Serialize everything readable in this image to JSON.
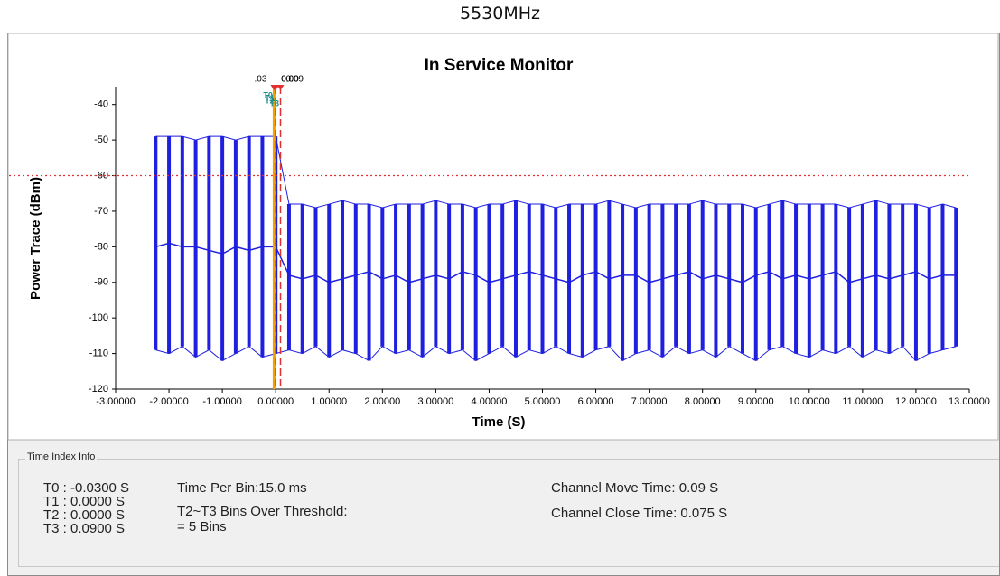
{
  "header": {
    "title": "5530MHz"
  },
  "chart_data": {
    "type": "trace",
    "title": "In Service Monitor",
    "x_label": "Time (S)",
    "y_label": "Power Trace (dBm)",
    "xlim": [
      -3,
      13
    ],
    "xticks": [
      {
        "value": -3,
        "label": "-3.00000"
      },
      {
        "value": -2,
        "label": "-2.00000"
      },
      {
        "value": -1,
        "label": "-1.00000"
      },
      {
        "value": 0,
        "label": "0.00000"
      },
      {
        "value": 1,
        "label": "1.00000"
      },
      {
        "value": 2,
        "label": "2.00000"
      },
      {
        "value": 3,
        "label": "3.00000"
      },
      {
        "value": 4,
        "label": "4.00000"
      },
      {
        "value": 5,
        "label": "5.00000"
      },
      {
        "value": 6,
        "label": "6.00000"
      },
      {
        "value": 7,
        "label": "7.00000"
      },
      {
        "value": 8,
        "label": "8.00000"
      },
      {
        "value": 9,
        "label": "9.00000"
      },
      {
        "value": 10,
        "label": "10.00000"
      },
      {
        "value": 11,
        "label": "11.00000"
      },
      {
        "value": 12,
        "label": "12.00000"
      },
      {
        "value": 13,
        "label": "13.00000"
      }
    ],
    "ylim": [
      -120,
      -35
    ],
    "yticks": [
      -120,
      -110,
      -100,
      -90,
      -80,
      -70,
      -60,
      -50,
      -40
    ],
    "threshold": -60,
    "threshold_color": "#e03030",
    "x": [
      -2.25,
      -2,
      -1.75,
      -1.5,
      -1.25,
      -1,
      -0.75,
      -0.5,
      -0.25,
      0,
      0.25,
      0.5,
      0.75,
      1,
      1.25,
      1.5,
      1.75,
      2,
      2.25,
      2.5,
      2.75,
      3,
      3.25,
      3.5,
      3.75,
      4,
      4.25,
      4.5,
      4.75,
      5,
      5.25,
      5.5,
      5.75,
      6,
      6.25,
      6.5,
      6.75,
      7,
      7.25,
      7.5,
      7.75,
      8,
      8.25,
      8.5,
      8.75,
      9,
      9.25,
      9.5,
      9.75,
      10,
      10.25,
      10.5,
      10.75,
      11,
      11.25,
      11.5,
      11.75,
      12,
      12.25,
      12.5,
      12.75
    ],
    "series": [
      {
        "color": "#1f1fe0",
        "values": [
          -49,
          -49,
          -49,
          -50,
          -49,
          -49,
          -50,
          -49,
          -49,
          -49,
          -68,
          -68,
          -69,
          -68,
          -67,
          -68,
          -68,
          -69,
          -68,
          -68,
          -68,
          -67,
          -68,
          -68,
          -69,
          -68,
          -68,
          -67,
          -68,
          -68,
          -69,
          -68,
          -68,
          -68,
          -67,
          -68,
          -69,
          -68,
          -68,
          -68,
          -68,
          -67,
          -68,
          -68,
          -68,
          -69,
          -68,
          -67,
          -68,
          -68,
          -68,
          -68,
          -69,
          -68,
          -67,
          -68,
          -68,
          -68,
          -69,
          -68,
          -69
        ]
      },
      {
        "color": "#1f1fe0",
        "values": [
          -80,
          -79,
          -80,
          -80,
          -81,
          -82,
          -80,
          -81,
          -80,
          -80,
          -88,
          -89,
          -88,
          -90,
          -89,
          -88,
          -87,
          -89,
          -88,
          -90,
          -89,
          -88,
          -89,
          -87,
          -88,
          -90,
          -89,
          -88,
          -87,
          -88,
          -89,
          -90,
          -88,
          -87,
          -89,
          -88,
          -88,
          -90,
          -89,
          -88,
          -87,
          -89,
          -88,
          -89,
          -90,
          -88,
          -87,
          -89,
          -88,
          -89,
          -88,
          -87,
          -90,
          -89,
          -88,
          -89,
          -88,
          -87,
          -89,
          -88,
          -88
        ]
      },
      {
        "color": "#1f1fe0",
        "values": [
          -109,
          -110,
          -108,
          -111,
          -109,
          -112,
          -110,
          -108,
          -111,
          -110,
          -109,
          -110,
          -108,
          -111,
          -109,
          -110,
          -112,
          -108,
          -110,
          -109,
          -111,
          -108,
          -110,
          -109,
          -112,
          -110,
          -108,
          -111,
          -109,
          -110,
          -108,
          -110,
          -111,
          -109,
          -108,
          -112,
          -110,
          -109,
          -111,
          -108,
          -110,
          -109,
          -111,
          -108,
          -110,
          -112,
          -109,
          -108,
          -110,
          -111,
          -109,
          -110,
          -108,
          -111,
          -109,
          -110,
          -108,
          -112,
          -110,
          -109,
          -108
        ]
      }
    ],
    "markers": [
      {
        "name": "T0",
        "value": -0.03,
        "label": "-.03",
        "color": "#f5a000"
      },
      {
        "name": "T1",
        "value": 0,
        "label": "0.00",
        "color": "#e03030"
      },
      {
        "name": "T2",
        "value": 0,
        "label": "0.00",
        "color": "#e03030"
      },
      {
        "name": "T3",
        "value": 0.09,
        "label": "0.09",
        "color": "#e03030"
      }
    ]
  },
  "info_panel": {
    "title": "Time Index Info",
    "t_values": [
      "T0 : -0.0300  S",
      "T1 : 0.0000  S",
      "T2 : 0.0000  S",
      "T3 : 0.0900  S"
    ],
    "time_per_bin": "Time Per Bin:15.0 ms",
    "bins_over_threshold": "T2~T3 Bins Over Threshold:",
    "bins_count": "= 5 Bins",
    "channel_move_time": "Channel Move Time: 0.09  S",
    "channel_close_time": "Channel Close Time: 0.075  S"
  }
}
